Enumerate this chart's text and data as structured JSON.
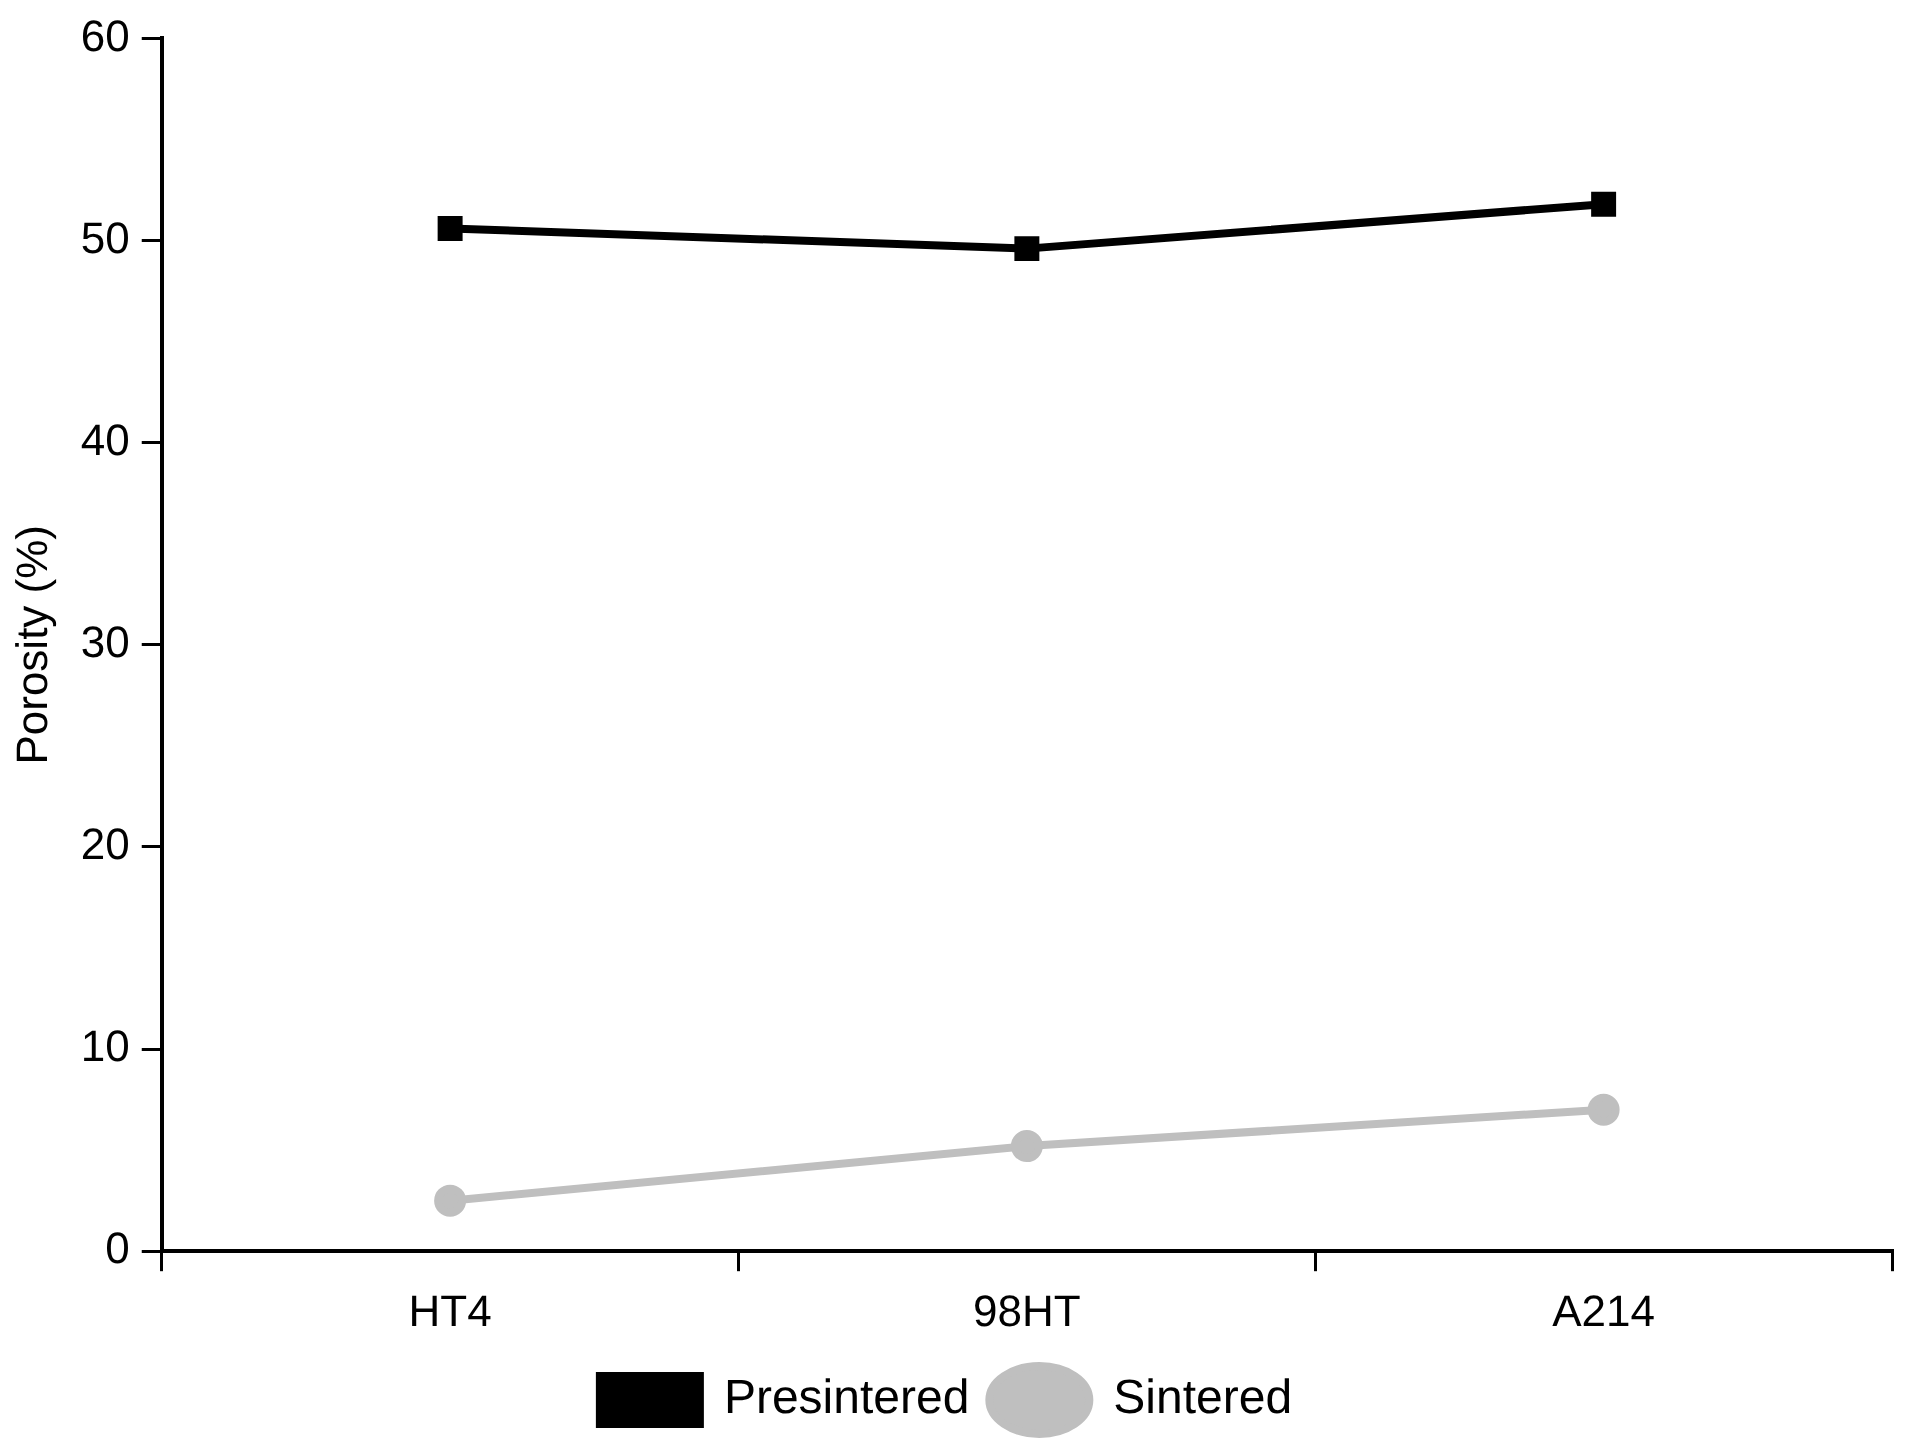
{
  "chart_data": {
    "type": "line",
    "ylabel": "Porosity (%)",
    "categories": [
      "HT4",
      "98HT",
      "A214"
    ],
    "series": [
      {
        "name": "Presintered",
        "color": "#000000",
        "marker": "square",
        "values": [
          50.6,
          49.6,
          51.8
        ]
      },
      {
        "name": "Sintered",
        "color": "#bfbfbf",
        "marker": "circle",
        "values": [
          2.5,
          5.2,
          7.0
        ]
      }
    ],
    "ylim": [
      0,
      60
    ],
    "yticks": [
      0,
      10,
      20,
      30,
      40,
      50,
      60
    ],
    "grid": false,
    "legend": "bottom",
    "line_style": "solid"
  }
}
